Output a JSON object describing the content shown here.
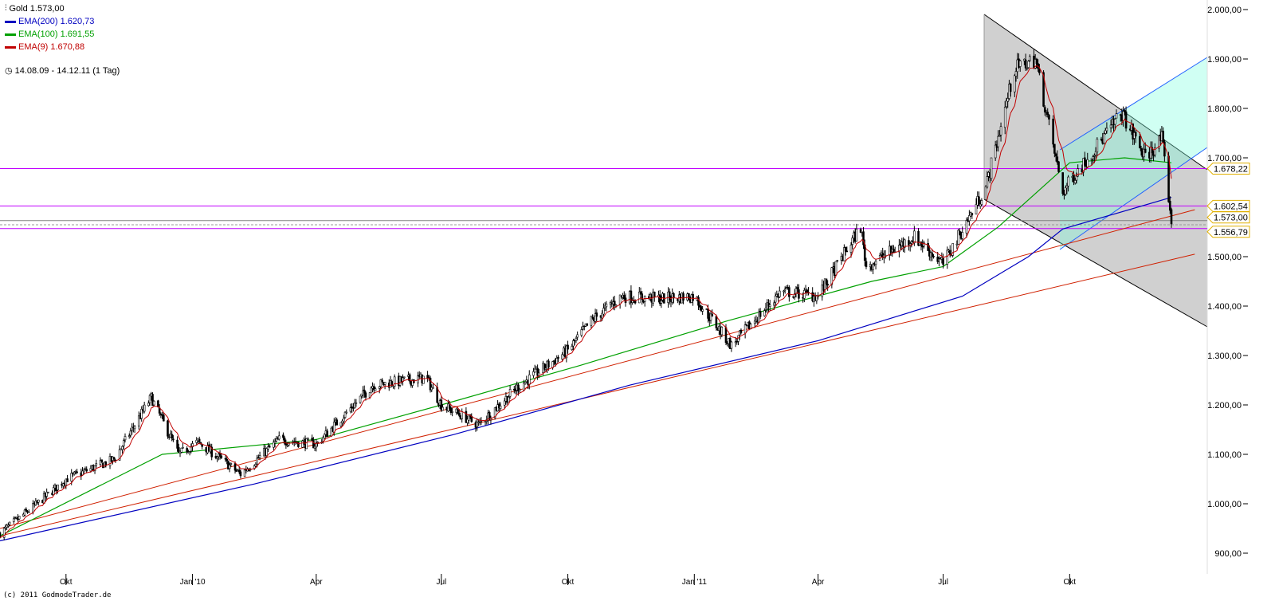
{
  "chart_data": {
    "type": "candlestick",
    "legend": [
      {
        "label": "Gold 1.573,00",
        "color": "#000000"
      },
      {
        "label": "EMA(200) 1.620,73",
        "color": "#0000c0"
      },
      {
        "label": "EMA(100) 1.691,55",
        "color": "#00a000"
      },
      {
        "label": "EMA(9) 1.670,88",
        "color": "#c00000"
      }
    ],
    "period": "14.08.09 - 14.12.11 (1 Tag)",
    "ylim": [
      880,
      2000
    ],
    "yticks": [
      "2.000,00",
      "1.900,00",
      "1.800,00",
      "1.700,00",
      "1.500,00",
      "1.400,00",
      "1.300,00",
      "1.200,00",
      "1.100,00",
      "1.000,00",
      "900,00"
    ],
    "ytick_values": [
      2000,
      1900,
      1800,
      1700,
      1500,
      1400,
      1300,
      1200,
      1100,
      1000,
      900
    ],
    "xticks": [
      {
        "label": "Okt",
        "date": "2009-10-01"
      },
      {
        "label": "Jan '10",
        "date": "2010-01-01"
      },
      {
        "label": "Apr",
        "date": "2010-04-01"
      },
      {
        "label": "Jul",
        "date": "2010-07-01"
      },
      {
        "label": "Okt",
        "date": "2010-10-01"
      },
      {
        "label": "Jan '11",
        "date": "2011-01-01"
      },
      {
        "label": "Apr",
        "date": "2011-04-01"
      },
      {
        "label": "Jul",
        "date": "2011-07-01"
      },
      {
        "label": "Okt",
        "date": "2011-10-01"
      }
    ],
    "xrange": [
      "2009-08-14",
      "2011-12-14"
    ],
    "price_keypoints": [
      [
        "2009-08-14",
        940
      ],
      [
        "2009-09-10",
        1000
      ],
      [
        "2009-10-01",
        1050
      ],
      [
        "2009-11-05",
        1090
      ],
      [
        "2009-12-02",
        1215
      ],
      [
        "2009-12-22",
        1100
      ],
      [
        "2010-01-05",
        1125
      ],
      [
        "2010-02-05",
        1060
      ],
      [
        "2010-03-05",
        1130
      ],
      [
        "2010-04-01",
        1120
      ],
      [
        "2010-05-12",
        1240
      ],
      [
        "2010-06-20",
        1255
      ],
      [
        "2010-07-01",
        1200
      ],
      [
        "2010-07-28",
        1160
      ],
      [
        "2010-08-25",
        1235
      ],
      [
        "2010-10-01",
        1310
      ],
      [
        "2010-10-18",
        1370
      ],
      [
        "2010-11-09",
        1420
      ],
      [
        "2010-12-07",
        1415
      ],
      [
        "2011-01-01",
        1420
      ],
      [
        "2011-01-28",
        1320
      ],
      [
        "2011-03-05",
        1430
      ],
      [
        "2011-04-01",
        1420
      ],
      [
        "2011-05-02",
        1560
      ],
      [
        "2011-05-06",
        1480
      ],
      [
        "2011-06-10",
        1540
      ],
      [
        "2011-07-01",
        1485
      ],
      [
        "2011-08-01",
        1640
      ],
      [
        "2011-08-22",
        1880
      ],
      [
        "2011-09-06",
        1900
      ],
      [
        "2011-09-26",
        1630
      ],
      [
        "2011-10-03",
        1660
      ],
      [
        "2011-11-08",
        1790
      ],
      [
        "2011-11-25",
        1700
      ],
      [
        "2011-12-07",
        1740
      ],
      [
        "2011-12-14",
        1573
      ]
    ],
    "ema200": [
      [
        "2009-08-14",
        925
      ],
      [
        "2010-02-15",
        1040
      ],
      [
        "2010-07-10",
        1140
      ],
      [
        "2010-11-15",
        1240
      ],
      [
        "2011-04-01",
        1330
      ],
      [
        "2011-07-15",
        1420
      ],
      [
        "2011-09-01",
        1500
      ],
      [
        "2011-09-26",
        1556
      ],
      [
        "2011-12-14",
        1620
      ]
    ],
    "ema100": [
      [
        "2009-08-14",
        935
      ],
      [
        "2009-12-10",
        1100
      ],
      [
        "2010-04-01",
        1130
      ],
      [
        "2010-07-01",
        1200
      ],
      [
        "2010-10-10",
        1280
      ],
      [
        "2011-01-25",
        1370
      ],
      [
        "2011-05-10",
        1450
      ],
      [
        "2011-07-01",
        1480
      ],
      [
        "2011-08-10",
        1560
      ],
      [
        "2011-10-01",
        1690
      ],
      [
        "2011-11-10",
        1700
      ],
      [
        "2011-12-14",
        1690
      ]
    ],
    "hlines": [
      {
        "value": 1678.22,
        "label": "1.678,22",
        "color": "#c000ff"
      },
      {
        "value": 1602.54,
        "label": "1.602,54",
        "color": "#c000ff"
      },
      {
        "value": 1573.0,
        "label": "1.573,00",
        "color": "#808080"
      },
      {
        "value": 1556.79,
        "label": "1.556,79",
        "color": "#c000ff"
      }
    ],
    "trendlines": [
      {
        "color": "#d02000",
        "from": [
          "2009-08-14",
          950
        ],
        "to": [
          "2011-12-31",
          1595
        ]
      },
      {
        "color": "#d02000",
        "from": [
          "2009-08-14",
          935
        ],
        "to": [
          "2011-12-31",
          1505
        ]
      }
    ]
  },
  "copyright": "(c) 2011 GodmodeTrader.de"
}
